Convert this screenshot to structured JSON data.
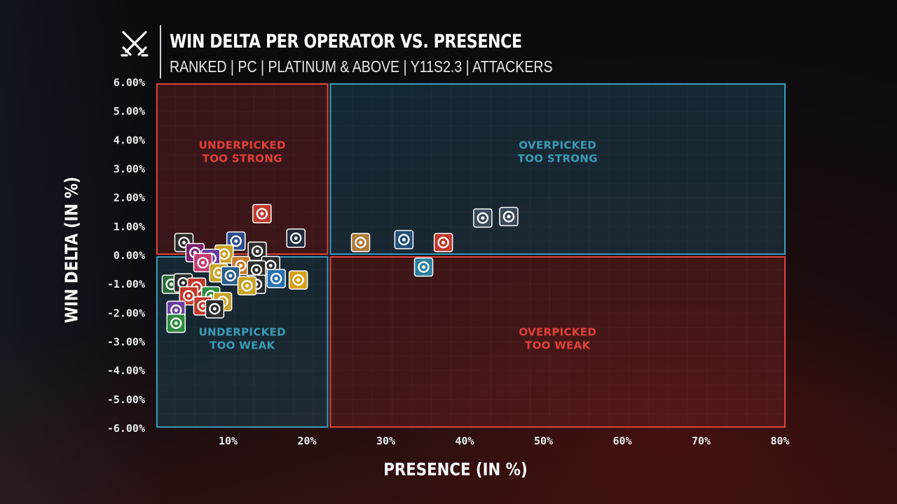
{
  "header": {
    "title": "WIN DELTA PER OPERATOR VS. PRESENCE",
    "subtitle": "RANKED | PC | PLATINUM & ABOVE | Y11S2.3 | ATTACKERS",
    "logo_icon": "crossed-swords-icon"
  },
  "colors": {
    "red": "#e0413a",
    "teal": "#3a9bb5",
    "tick": "#e9ecef"
  },
  "chart_data": {
    "type": "scatter",
    "title": "WIN DELTA PER OPERATOR VS. PRESENCE",
    "subtitle": "RANKED | PC | PLATINUM & ABOVE | Y11S2.3 | ATTACKERS",
    "xlabel": "PRESENCE (IN %)",
    "ylabel": "WIN DELTA (IN %)",
    "xlim": [
      0,
      80
    ],
    "ylim": [
      -6,
      6
    ],
    "x_ticks": [
      "10%",
      "20%",
      "30%",
      "40%",
      "50%",
      "60%",
      "70%",
      "80%"
    ],
    "x_tick_values": [
      10,
      20,
      30,
      40,
      50,
      60,
      70,
      80
    ],
    "y_ticks": [
      "6.00%",
      "5.00%",
      "4.00%",
      "3.00%",
      "2.00%",
      "1.00%",
      "0.00%",
      "-1.00%",
      "-2.00%",
      "-3.00%",
      "-4.00%",
      "-5.00%",
      "-6.00%"
    ],
    "y_tick_values": [
      6,
      5,
      4,
      3,
      2,
      1,
      0,
      -1,
      -2,
      -3,
      -4,
      -5,
      -6
    ],
    "quadrants": [
      {
        "label_lines": [
          "UNDERPICKED",
          "TOO STRONG"
        ],
        "x_range": [
          0,
          22
        ],
        "y_range": [
          0,
          6
        ],
        "color": "red"
      },
      {
        "label_lines": [
          "OVERPICKED",
          "TOO STRONG"
        ],
        "x_range": [
          22,
          80
        ],
        "y_range": [
          0,
          6
        ],
        "color": "teal"
      },
      {
        "label_lines": [
          "UNDERPICKED",
          "TOO WEAK"
        ],
        "x_range": [
          0,
          22
        ],
        "y_range": [
          -6,
          0
        ],
        "color": "teal"
      },
      {
        "label_lines": [
          "OVERPICKED",
          "TOO WEAK"
        ],
        "x_range": [
          22,
          80
        ],
        "y_range": [
          -6,
          0
        ],
        "color": "red"
      }
    ],
    "points": [
      {
        "x": 13.5,
        "y": 1.45,
        "icon": "flame-icon",
        "color": "#c0392b"
      },
      {
        "x": 17.8,
        "y": 0.6,
        "icon": "power-icon",
        "color": "#1f2a3a"
      },
      {
        "x": 10.2,
        "y": 0.5,
        "icon": "shield-icon",
        "color": "#2d4a8a"
      },
      {
        "x": 3.6,
        "y": 0.45,
        "icon": "skull-icon",
        "color": "#2b2b2b"
      },
      {
        "x": 12.9,
        "y": 0.15,
        "icon": "helmet-icon",
        "color": "#2b2b2b"
      },
      {
        "x": 5.0,
        "y": 0.1,
        "icon": "mask-icon",
        "color": "#7a1f6e"
      },
      {
        "x": 8.7,
        "y": 0.05,
        "icon": "gear-icon",
        "color": "#c9a227"
      },
      {
        "x": 7.0,
        "y": -0.1,
        "icon": "bolt-icon",
        "color": "#6a3ea1"
      },
      {
        "x": 6.0,
        "y": -0.25,
        "icon": "claw-icon",
        "color": "#c6396d"
      },
      {
        "x": 10.8,
        "y": -0.35,
        "icon": "fox-icon",
        "color": "#c67a2a"
      },
      {
        "x": 14.6,
        "y": -0.35,
        "icon": "horns-icon",
        "color": "#2b2b2b"
      },
      {
        "x": 12.8,
        "y": -0.5,
        "icon": "gas-icon",
        "color": "#2b2b2b"
      },
      {
        "x": 8.0,
        "y": -0.6,
        "icon": "chevron-icon",
        "color": "#c9a227"
      },
      {
        "x": 9.5,
        "y": -0.7,
        "icon": "shotgun-icon",
        "color": "#2c5f8a"
      },
      {
        "x": 15.3,
        "y": -0.8,
        "icon": "bars-icon",
        "color": "#2a6fb0"
      },
      {
        "x": 18.1,
        "y": -0.85,
        "icon": "bee-icon",
        "color": "#d4a017"
      },
      {
        "x": 12.8,
        "y": -1.0,
        "icon": "drone-icon",
        "color": "#2b2b2b"
      },
      {
        "x": 11.6,
        "y": -1.05,
        "icon": "cross-icon",
        "color": "#c9a227"
      },
      {
        "x": 2.0,
        "y": -1.0,
        "icon": "leaf-icon",
        "color": "#2b6b3a"
      },
      {
        "x": 3.5,
        "y": -0.95,
        "icon": "eye-icon",
        "color": "#2b2b2b"
      },
      {
        "x": 5.2,
        "y": -1.1,
        "icon": "crosshair-icon",
        "color": "#c0392b"
      },
      {
        "x": 7.0,
        "y": -1.4,
        "icon": "target-icon",
        "color": "#2b8a3e"
      },
      {
        "x": 8.5,
        "y": -1.6,
        "icon": "sun-icon",
        "color": "#c9a227"
      },
      {
        "x": 4.2,
        "y": -1.4,
        "icon": "mask2-icon",
        "color": "#c0392b"
      },
      {
        "x": 6.0,
        "y": -1.75,
        "icon": "gloves-icon",
        "color": "#c0392b"
      },
      {
        "x": 7.5,
        "y": -1.85,
        "icon": "claws-icon",
        "color": "#2b2b2b"
      },
      {
        "x": 2.6,
        "y": -1.9,
        "icon": "ring-icon",
        "color": "#6a3ea1"
      },
      {
        "x": 2.6,
        "y": -2.35,
        "icon": "kite-icon",
        "color": "#2b8a3e"
      },
      {
        "x": 26.0,
        "y": 0.45,
        "icon": "compass-icon",
        "color": "#b07a3a"
      },
      {
        "x": 31.5,
        "y": 0.55,
        "icon": "robot-icon",
        "color": "#1f4f7a"
      },
      {
        "x": 36.5,
        "y": 0.45,
        "icon": "spear-icon",
        "color": "#c0392b"
      },
      {
        "x": 34.0,
        "y": -0.4,
        "icon": "wings-icon",
        "color": "#2a7fa0"
      },
      {
        "x": 41.5,
        "y": 1.3,
        "icon": "duo-icon",
        "color": "#3a4a5a"
      },
      {
        "x": 44.8,
        "y": 1.35,
        "icon": "face-icon",
        "color": "#3a4a5a"
      }
    ]
  }
}
